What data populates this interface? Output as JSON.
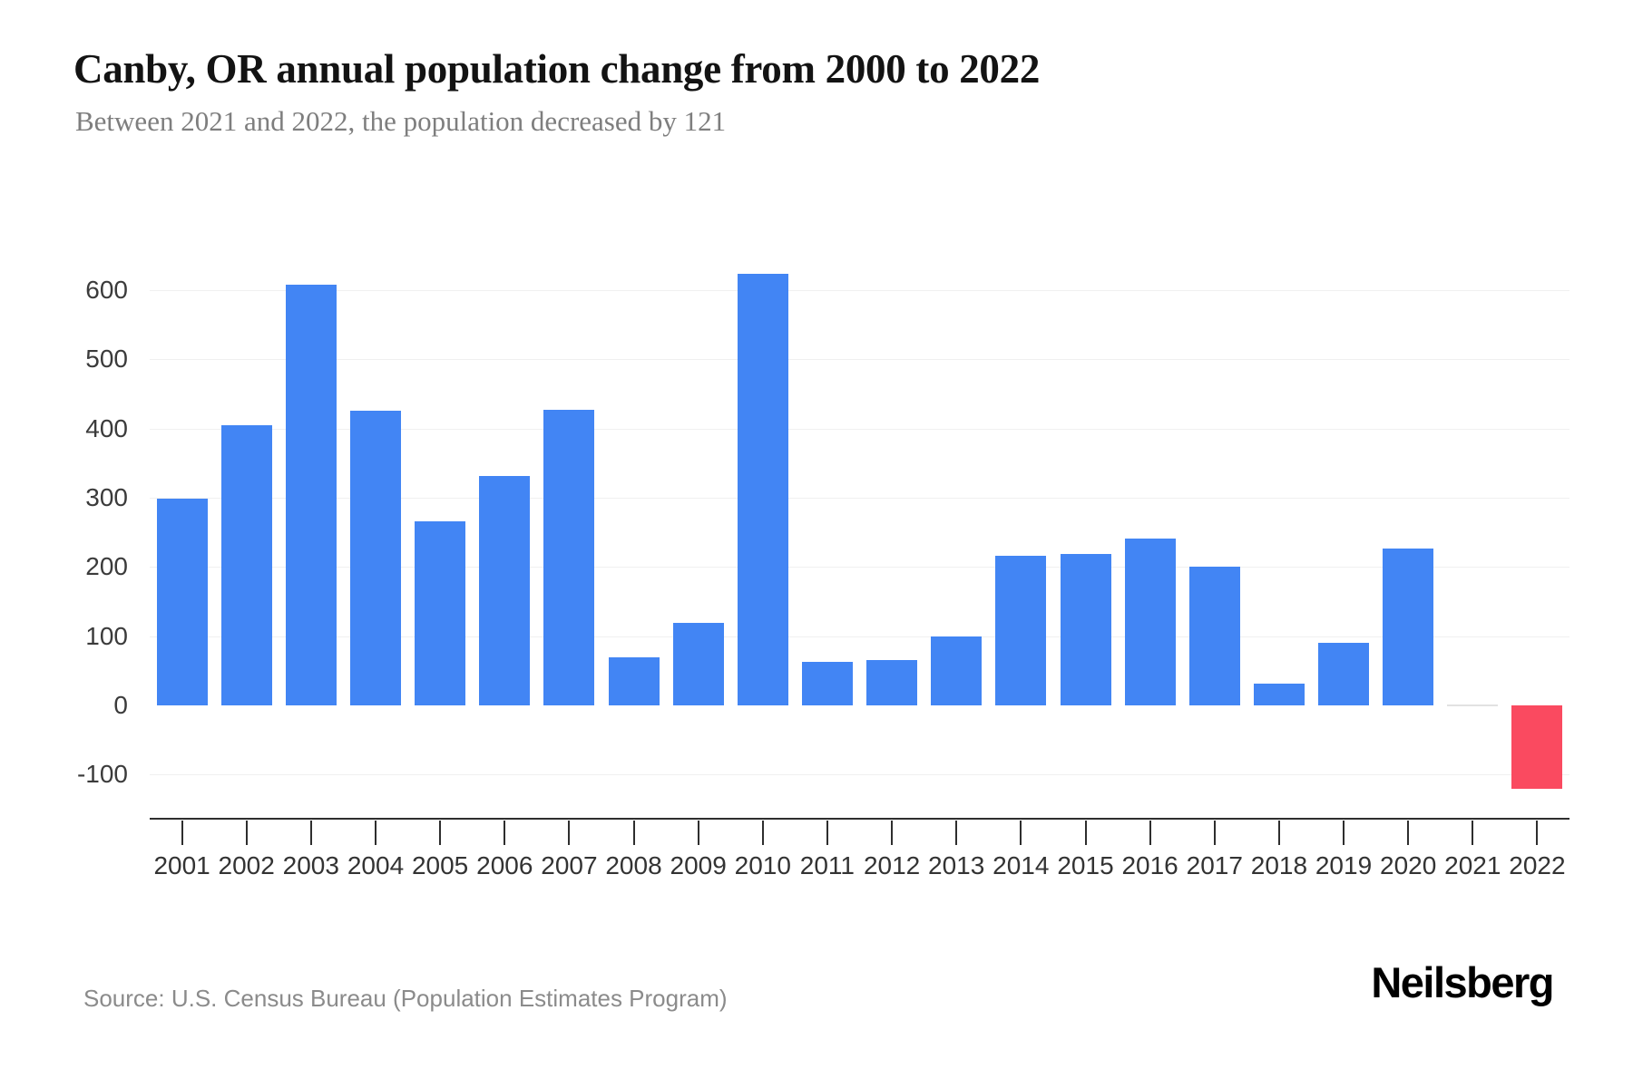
{
  "header": {
    "title": "Canby, OR annual population change from 2000 to 2022",
    "subtitle": "Between 2021 and 2022, the population decreased by 121"
  },
  "footer": {
    "source": "Source: U.S. Census Bureau (Population Estimates Program)",
    "brand": "Neilsberg"
  },
  "chart_data": {
    "type": "bar",
    "title": "Canby, OR annual population change from 2000 to 2022",
    "categories": [
      "2001",
      "2002",
      "2003",
      "2004",
      "2005",
      "2006",
      "2007",
      "2008",
      "2009",
      "2010",
      "2011",
      "2012",
      "2013",
      "2014",
      "2015",
      "2016",
      "2017",
      "2018",
      "2019",
      "2020",
      "2021",
      "2022"
    ],
    "values": [
      298,
      405,
      608,
      426,
      266,
      331,
      427,
      69,
      119,
      624,
      63,
      65,
      100,
      216,
      219,
      241,
      200,
      31,
      90,
      227,
      0,
      -121
    ],
    "xlabel": "",
    "ylabel": "",
    "ylim": [
      -164,
      685
    ],
    "yticks": [
      {
        "label": "600",
        "value": 600,
        "gridline": true
      },
      {
        "label": "500",
        "value": 500,
        "gridline": true
      },
      {
        "label": "400",
        "value": 400,
        "gridline": true
      },
      {
        "label": "300",
        "value": 300,
        "gridline": true
      },
      {
        "label": "200",
        "value": 200,
        "gridline": true
      },
      {
        "label": "100",
        "value": 100,
        "gridline": true
      },
      {
        "label": "0",
        "value": 0,
        "gridline": false
      },
      {
        "label": "-100",
        "value": -100,
        "gridline": true
      }
    ],
    "grid": true,
    "legend": "none",
    "colors": {
      "positive": "#4285F4",
      "negative": "#FA4A60",
      "zero_hairline": "#e2e2e2"
    }
  }
}
